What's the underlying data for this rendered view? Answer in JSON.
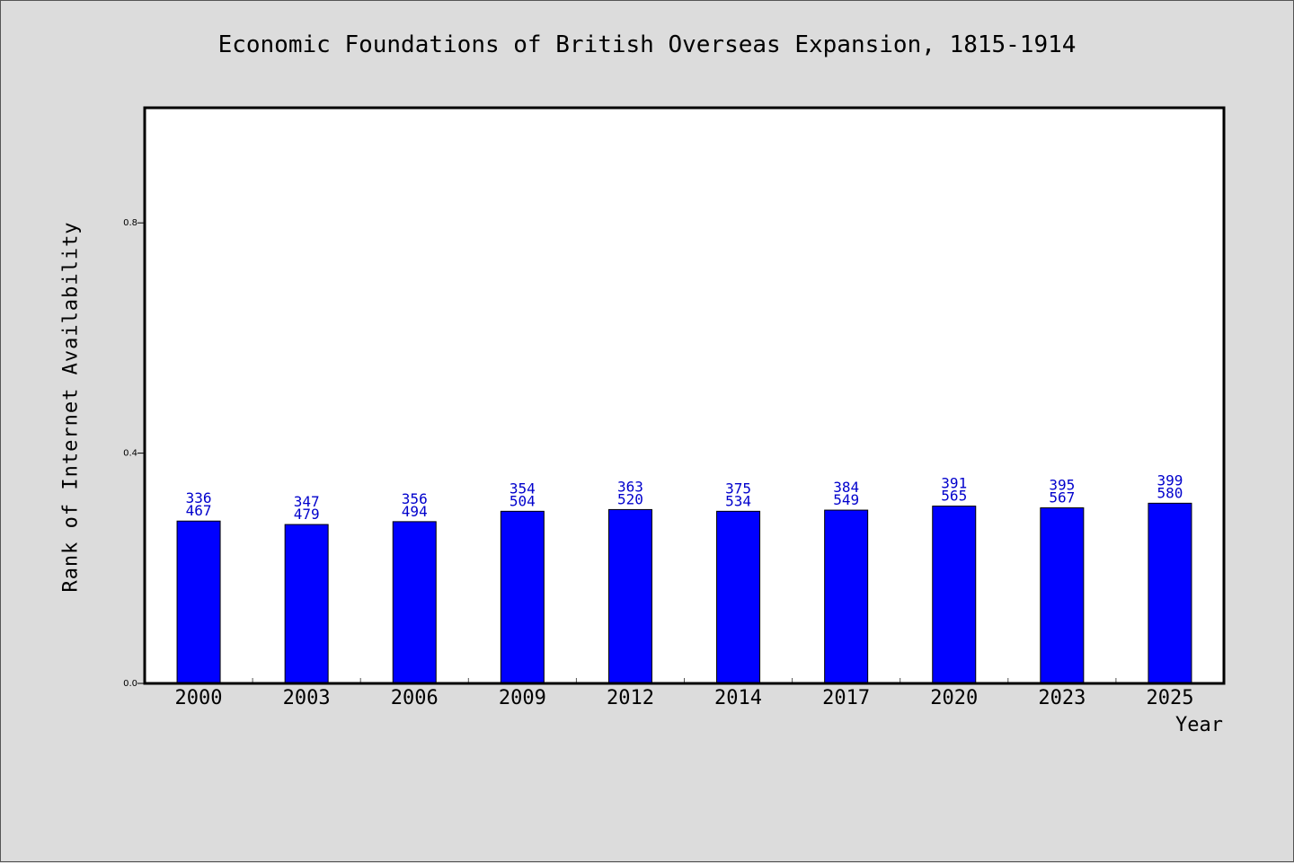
{
  "chart_data": {
    "type": "bar",
    "title": "Economic Foundations of British Overseas Expansion, 1815-1914",
    "xlabel": "Year",
    "ylabel": "Rank of Internet Availability",
    "categories": [
      "2000",
      "2003",
      "2006",
      "2009",
      "2012",
      "2014",
      "2017",
      "2020",
      "2023",
      "2025"
    ],
    "series": [
      {
        "values": [
          0.282,
          0.276,
          0.281,
          0.299,
          0.302,
          0.299,
          0.301,
          0.308,
          0.305,
          0.313
        ],
        "label_upper": [
          "336",
          "347",
          "356",
          "354",
          "363",
          "375",
          "384",
          "391",
          "395",
          "399"
        ],
        "label_lower": [
          "467",
          "479",
          "494",
          "504",
          "520",
          "534",
          "549",
          "565",
          "567",
          "580"
        ]
      }
    ],
    "ylim": [
      0,
      1
    ],
    "yticks": [
      "0.0",
      "0.4",
      "0.8"
    ],
    "grid": false,
    "colors": {
      "bar": "#0000ff",
      "bar_edge": "#000000",
      "label": "#0000cc",
      "background": "#dcdcdc",
      "plot": "#ffffff"
    }
  }
}
